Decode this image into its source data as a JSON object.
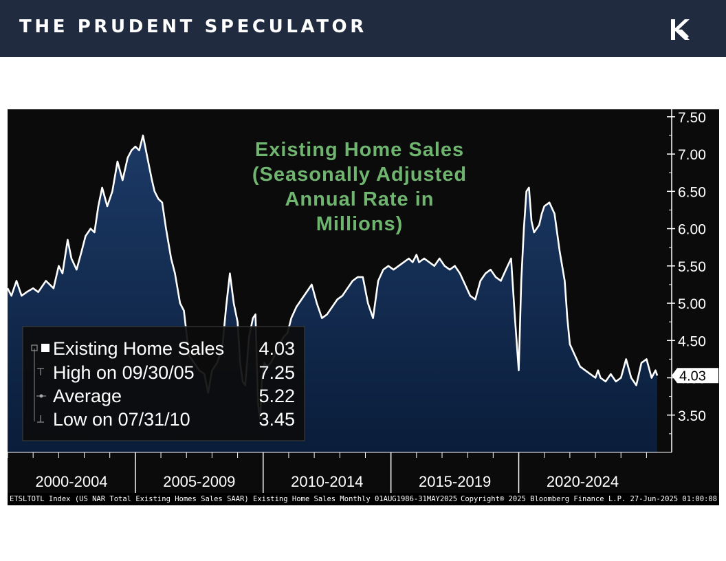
{
  "header": {
    "brand": "THE PRUDENT SPECULATOR",
    "logo_icon": "tps-monogram-icon",
    "background": "#212b40"
  },
  "chart_data": {
    "type": "area",
    "title": "Existing Home Sales (Seasonally Adjusted Annual Rate in Millions)",
    "title_lines": [
      "Existing Home Sales",
      "(Seasonally Adjusted",
      "Annual Rate in",
      "Millions)"
    ],
    "title_color": "#6fb46f",
    "ylim": [
      3.0,
      7.6
    ],
    "y_ticks": [
      "7.50",
      "7.00",
      "6.50",
      "6.00",
      "5.50",
      "5.00",
      "4.50",
      "4.00",
      "3.50"
    ],
    "y_tick_values": [
      7.5,
      7.0,
      6.5,
      6.0,
      5.5,
      5.0,
      4.5,
      4.0,
      3.5
    ],
    "x_range": [
      2000.0,
      2025.5
    ],
    "x_period_labels": [
      "2000-2004",
      "2005-2009",
      "2010-2014",
      "2015-2019",
      "2020-2024"
    ],
    "x_period_centers": [
      2002.5,
      2007.5,
      2012.5,
      2017.5,
      2022.5
    ],
    "x_period_dividers": [
      2005.0,
      2010.0,
      2015.0,
      2020.0
    ],
    "last_value_label": "4.03",
    "last_value": 4.03,
    "series": [
      {
        "name": "Existing Home Sales",
        "color": "#ffffff",
        "fill": "#0f2a4f",
        "x": [
          2000.0,
          2000.15,
          2000.35,
          2000.55,
          2000.75,
          2001.0,
          2001.2,
          2001.5,
          2001.8,
          2002.0,
          2002.15,
          2002.35,
          2002.5,
          2002.7,
          2002.9,
          2003.05,
          2003.25,
          2003.4,
          2003.55,
          2003.7,
          2003.9,
          2004.1,
          2004.3,
          2004.5,
          2004.7,
          2004.85,
          2005.0,
          2005.15,
          2005.3,
          2005.5,
          2005.65,
          2005.75,
          2005.9,
          2006.05,
          2006.2,
          2006.4,
          2006.55,
          2006.75,
          2006.9,
          2007.1,
          2007.3,
          2007.5,
          2007.7,
          2007.85,
          2008.0,
          2008.2,
          2008.4,
          2008.55,
          2008.7,
          2008.85,
          2009.0,
          2009.1,
          2009.2,
          2009.3,
          2009.45,
          2009.6,
          2009.7,
          2009.8,
          2009.88,
          2009.95,
          2010.05,
          2010.15,
          2010.3,
          2010.45,
          2010.55,
          2010.65,
          2010.8,
          2010.95,
          2011.1,
          2011.3,
          2011.5,
          2011.7,
          2011.9,
          2012.1,
          2012.3,
          2012.5,
          2012.7,
          2012.9,
          2013.1,
          2013.3,
          2013.5,
          2013.7,
          2013.9,
          2014.1,
          2014.3,
          2014.5,
          2014.7,
          2014.9,
          2015.1,
          2015.3,
          2015.5,
          2015.7,
          2015.85,
          2016.0,
          2016.1,
          2016.3,
          2016.5,
          2016.7,
          2016.9,
          2017.1,
          2017.3,
          2017.5,
          2017.7,
          2017.9,
          2018.1,
          2018.3,
          2018.5,
          2018.7,
          2018.9,
          2019.1,
          2019.3,
          2019.5,
          2019.7,
          2019.85,
          2020.0,
          2020.1,
          2020.2,
          2020.3,
          2020.4,
          2020.5,
          2020.6,
          2020.7,
          2020.8,
          2020.9,
          2021.0,
          2021.2,
          2021.4,
          2021.6,
          2021.8,
          2021.9,
          2022.0,
          2022.2,
          2022.4,
          2022.6,
          2022.8,
          2023.0,
          2023.1,
          2023.2,
          2023.4,
          2023.6,
          2023.8,
          2024.0,
          2024.2,
          2024.4,
          2024.6,
          2024.8,
          2025.0,
          2025.2,
          2025.35,
          2025.42
        ],
        "y": [
          5.2,
          5.1,
          5.3,
          5.1,
          5.15,
          5.2,
          5.15,
          5.3,
          5.2,
          5.5,
          5.4,
          5.85,
          5.6,
          5.45,
          5.7,
          5.9,
          6.0,
          5.95,
          6.3,
          6.55,
          6.3,
          6.5,
          6.9,
          6.65,
          6.95,
          7.05,
          7.1,
          7.05,
          7.25,
          6.9,
          6.65,
          6.5,
          6.4,
          6.35,
          6.0,
          5.6,
          5.4,
          5.0,
          4.9,
          4.3,
          4.2,
          4.1,
          4.05,
          3.8,
          4.1,
          4.2,
          4.4,
          4.95,
          5.4,
          5.0,
          4.75,
          4.2,
          3.95,
          3.9,
          4.55,
          4.8,
          4.85,
          3.65,
          3.45,
          3.95,
          4.2,
          4.15,
          4.2,
          4.3,
          4.4,
          4.45,
          4.55,
          4.6,
          4.8,
          4.95,
          5.05,
          5.15,
          5.25,
          5.0,
          4.8,
          4.85,
          4.95,
          5.05,
          5.1,
          5.2,
          5.3,
          5.35,
          5.35,
          5.0,
          4.8,
          5.3,
          5.45,
          5.5,
          5.45,
          5.5,
          5.55,
          5.6,
          5.55,
          5.65,
          5.55,
          5.6,
          5.55,
          5.5,
          5.6,
          5.5,
          5.45,
          5.5,
          5.4,
          5.25,
          5.1,
          5.05,
          5.3,
          5.4,
          5.45,
          5.35,
          5.3,
          5.45,
          5.6,
          4.8,
          4.1,
          5.3,
          6.0,
          6.5,
          6.55,
          6.1,
          5.95,
          6.0,
          6.05,
          6.2,
          6.3,
          6.35,
          6.2,
          5.7,
          5.3,
          4.8,
          4.45,
          4.3,
          4.15,
          4.1,
          4.05,
          4.0,
          4.1,
          4.0,
          3.95,
          4.05,
          3.95,
          4.0,
          4.25,
          4.0,
          3.9,
          4.2,
          4.25,
          4.0,
          4.1,
          4.03
        ]
      }
    ],
    "legend": {
      "entries": [
        {
          "label": "Existing Home Sales",
          "value": "4.03",
          "marker": "filled-square-icon"
        },
        {
          "label": "High on 09/30/05",
          "value": "7.25",
          "marker": "high-tick-icon"
        },
        {
          "label": "Average",
          "value": "5.22",
          "marker": "average-dot-icon"
        },
        {
          "label": "Low on 07/31/10",
          "value": "3.45",
          "marker": "low-tick-icon"
        }
      ],
      "placement": "lower-left"
    },
    "footer": {
      "left": "ETSLTOTL Index (US NAR Total Existing Homes Sales SAAR) Existing Home Sales  Monthly 01AUG1986-31MAY2025",
      "right": "Copyright® 2025 Bloomberg Finance L.P.   27-Jun-2025 01:00:08"
    },
    "grid": false
  }
}
